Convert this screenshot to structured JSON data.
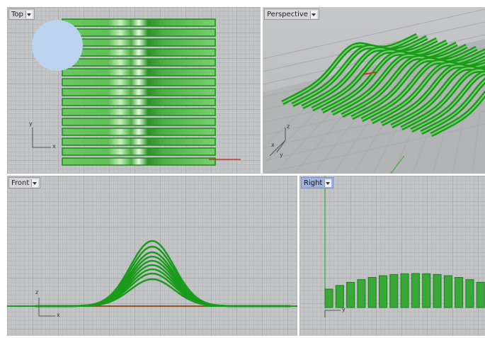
{
  "viewports": {
    "top": {
      "label": "Top"
    },
    "perspective": {
      "label": "Perspective"
    },
    "front": {
      "label": "Front"
    },
    "right": {
      "label": "Right"
    }
  },
  "axes": {
    "x": "x",
    "y": "y",
    "z": "z"
  },
  "colors": {
    "curve": "#1b9b1b",
    "strip": "#7ad06f",
    "axis_red": "#c0392b",
    "axis_green": "#27a927",
    "active_tab": "#9fb3df"
  }
}
